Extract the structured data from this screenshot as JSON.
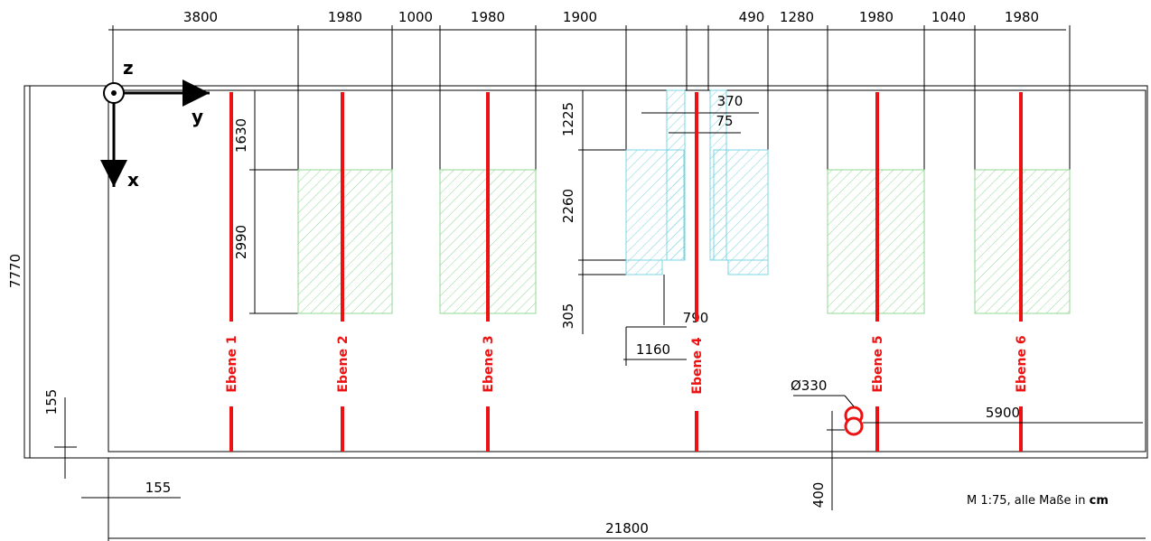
{
  "top_dimensions": [
    "3800",
    "1980",
    "1000",
    "1980",
    "1900",
    "490",
    "1280",
    "1980",
    "1040",
    "1980"
  ],
  "left_dimensions": [
    "1630",
    "2990",
    "1225",
    "2260",
    "305"
  ],
  "overall": {
    "height": "7770",
    "width": "21800",
    "offset_x": "155",
    "offset_y": "155"
  },
  "detail_dimensions": [
    "370",
    "75",
    "790",
    "1160"
  ],
  "post": {
    "diameter": "Ø330",
    "distance": "5900",
    "offset": "400"
  },
  "axes": {
    "z": "z",
    "y": "y",
    "x": "x"
  },
  "planes": [
    "Ebene 1",
    "Ebene 2",
    "Ebene 3",
    "Ebene 4",
    "Ebene 5",
    "Ebene 6"
  ],
  "scale_note": {
    "prefix": "M 1:75, alle Maße in ",
    "unit": "cm"
  },
  "colors": {
    "plane": "#ee1111",
    "green_block": "#8fd88f",
    "cyan_block": "#7ad4e0"
  }
}
